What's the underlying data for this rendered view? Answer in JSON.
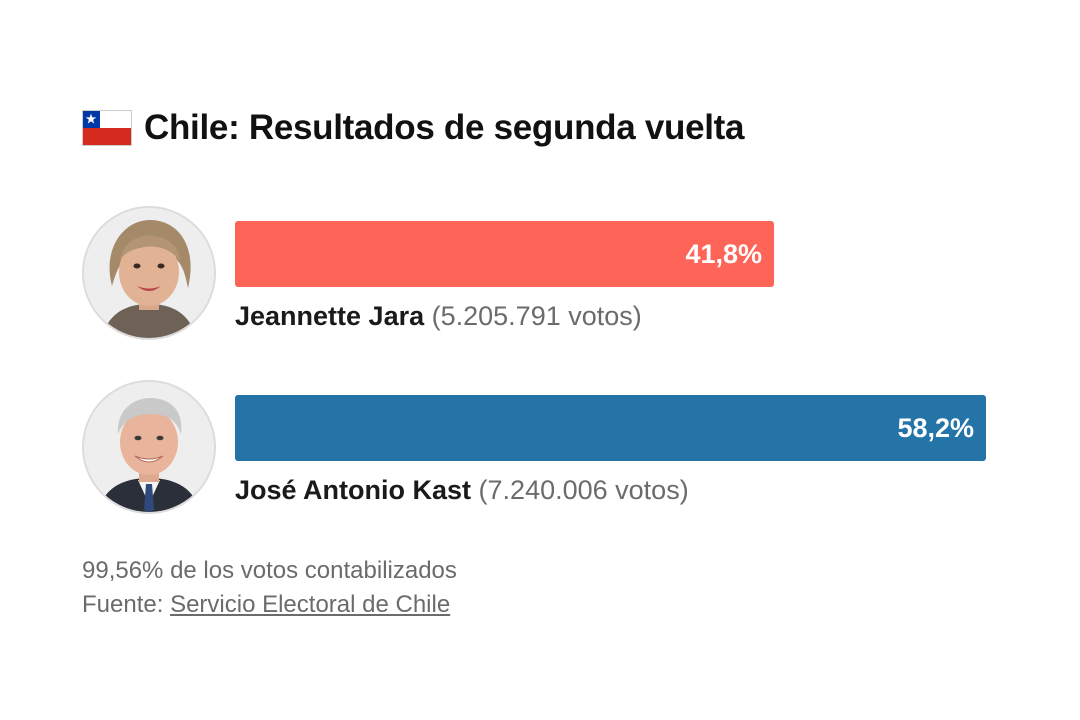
{
  "title": "Chile: Resultados de segunda vuelta",
  "flag_icon": "chile-flag-icon",
  "colors": {
    "jara": "#ff6459",
    "kast": "#2474a8"
  },
  "chart_data": {
    "type": "bar",
    "orientation": "horizontal",
    "xlim": [
      0,
      60
    ],
    "series": [
      {
        "candidate": "Jeannette Jara",
        "percent": 41.8,
        "percent_label": "41,8%",
        "votes_label": "(5.205.791 votos)",
        "color": "#ff6459"
      },
      {
        "candidate": "José Antonio Kast",
        "percent": 58.2,
        "percent_label": "58,2%",
        "votes_label": "(7.240.006 votos)",
        "color": "#2474a8"
      }
    ]
  },
  "footer": {
    "counted": "99,56% de los votos contabilizados",
    "source_prefix": "Fuente: ",
    "source_link": "Servicio Electoral de Chile"
  }
}
